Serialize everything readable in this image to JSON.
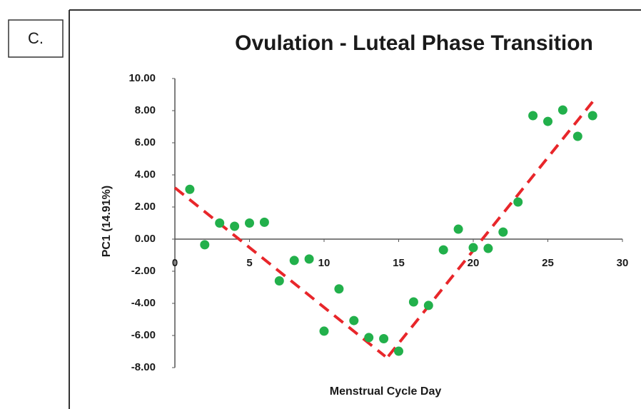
{
  "panel_label": "C.",
  "chart_data": {
    "type": "scatter",
    "title": "Ovulation - Luteal Phase Transition",
    "x_label": "Menstrual Cycle Day",
    "y_label": "PC1 (14.91%)",
    "x": [
      1,
      2,
      3,
      4,
      5,
      6,
      7,
      8,
      9,
      10,
      11,
      12,
      13,
      14,
      15,
      16,
      17,
      18,
      19,
      20,
      21,
      22,
      23,
      24,
      25,
      26,
      27,
      28
    ],
    "values": [
      3.1,
      -0.35,
      1.0,
      0.8,
      1.0,
      1.05,
      -2.6,
      -1.33,
      -1.24,
      -5.73,
      -3.1,
      -5.07,
      -6.13,
      -6.2,
      -6.98,
      -3.91,
      -4.13,
      -0.67,
      0.62,
      -0.53,
      -0.58,
      0.44,
      2.31,
      7.69,
      7.33,
      8.04,
      6.4,
      7.69
    ],
    "color": "#22b04b",
    "trendlines": [
      {
        "x": [
          0,
          14.1
        ],
        "values": [
          3.2,
          -7.3
        ],
        "color": "#e8262a"
      },
      {
        "x": [
          14.3,
          28
        ],
        "values": [
          -7.3,
          8.55
        ],
        "color": "#e8262a"
      }
    ],
    "xlim": [
      0,
      30
    ],
    "xticks": [
      0,
      5,
      10,
      15,
      20,
      25,
      30
    ],
    "ylim": [
      -8,
      10
    ],
    "yticks": [
      {
        "value": -8,
        "label": "-8.00"
      },
      {
        "value": -6,
        "label": "-6.00"
      },
      {
        "value": -4,
        "label": "-4.00"
      },
      {
        "value": -2,
        "label": "-2.00"
      },
      {
        "value": 0,
        "label": "0.00"
      },
      {
        "value": 2,
        "label": "2.00"
      },
      {
        "value": 4,
        "label": "4.00"
      },
      {
        "value": 6,
        "label": "6.00"
      },
      {
        "value": 8,
        "label": "8.00"
      },
      {
        "value": 10,
        "label": "10.00"
      }
    ]
  }
}
